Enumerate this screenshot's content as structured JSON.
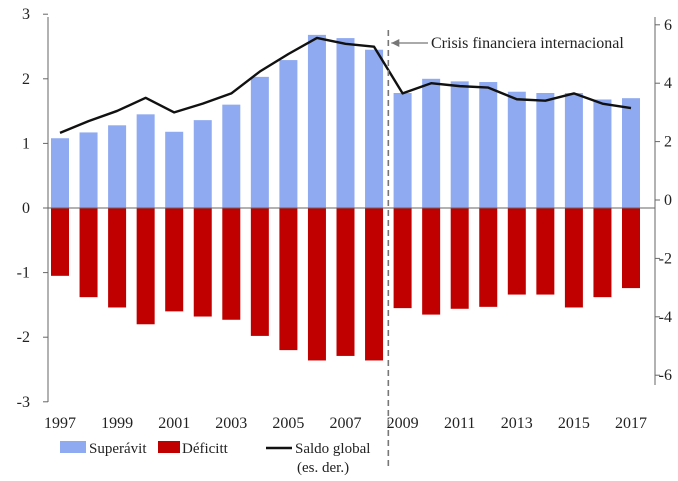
{
  "chart_data": {
    "type": "bar",
    "title": "",
    "xlabel": "",
    "ylabel": "",
    "x": [
      1997,
      1998,
      1999,
      2000,
      2001,
      2002,
      2003,
      2004,
      2005,
      2006,
      2007,
      2008,
      2009,
      2010,
      2011,
      2012,
      2013,
      2014,
      2015,
      2016,
      2017
    ],
    "x_tick_labels": [
      "1997",
      "1999",
      "2001",
      "2003",
      "2005",
      "2007",
      "2009",
      "2011",
      "2013",
      "2015",
      "2017"
    ],
    "ylim_left": [
      -3,
      3
    ],
    "y_ticks_left": [
      "3",
      "2",
      "1",
      "0",
      "-1",
      "-2",
      "-3"
    ],
    "ylim_right": [
      -6.3,
      6
    ],
    "y_ticks_right": [
      "6",
      "4",
      "2",
      "0",
      "-2",
      "-4",
      "-6"
    ],
    "series": [
      {
        "name": "Superávit",
        "kind": "bar",
        "axis": "left",
        "color": "#8faaf0",
        "values": [
          1.08,
          1.17,
          1.28,
          1.45,
          1.18,
          1.36,
          1.6,
          2.03,
          2.29,
          2.68,
          2.63,
          2.45,
          1.78,
          2.0,
          1.96,
          1.95,
          1.8,
          1.78,
          1.78,
          1.68,
          1.7
        ]
      },
      {
        "name": "Déficitt",
        "kind": "bar",
        "axis": "left",
        "color": "#c00000",
        "values": [
          -1.05,
          -1.38,
          -1.54,
          -1.8,
          -1.6,
          -1.68,
          -1.73,
          -1.98,
          -2.2,
          -2.36,
          -2.29,
          -2.36,
          -1.55,
          -1.65,
          -1.56,
          -1.53,
          -1.34,
          -1.34,
          -1.54,
          -1.38,
          -1.24
        ]
      },
      {
        "name": "Saldo global\n(es. der.)",
        "kind": "line",
        "axis": "right",
        "color": "#111111",
        "values": [
          2.3,
          2.7,
          3.05,
          3.5,
          3.0,
          3.3,
          3.65,
          4.4,
          5.0,
          5.55,
          5.35,
          5.25,
          3.65,
          4.0,
          3.9,
          3.85,
          3.45,
          3.4,
          3.65,
          3.3,
          3.15
        ]
      }
    ],
    "annotation": {
      "text": "Crisis financiera internacional",
      "x_between": [
        2008,
        2009
      ],
      "line_style": "dashed"
    },
    "legend": {
      "placement": "bottom-left",
      "items": [
        {
          "label": "Superávit",
          "color": "#8faaf0",
          "shape": "box"
        },
        {
          "label": "Déficitt",
          "color": "#c00000",
          "shape": "box"
        },
        {
          "label": "Saldo global",
          "label2": "(es. der.)",
          "color": "#111111",
          "shape": "line"
        }
      ]
    },
    "grid": false
  }
}
